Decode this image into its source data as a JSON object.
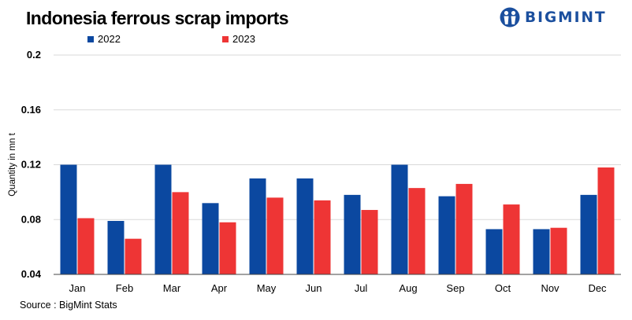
{
  "header": {
    "title": "Indonesia ferrous scrap imports"
  },
  "brand": {
    "name": "BIGMINT",
    "logo_icon": "bigmint-people-icon",
    "color": "#1b4f9e"
  },
  "footer": {
    "source": "Source : BigMint Stats"
  },
  "chart_data": {
    "type": "bar",
    "title": "Indonesia ferrous scrap imports",
    "xlabel": "",
    "ylabel": "Quantity in mn t",
    "ylim": [
      0.04,
      0.2
    ],
    "yticks": [
      0.04,
      0.08,
      0.12,
      0.16,
      0.2
    ],
    "ytick_labels": [
      "0.04",
      "0.08",
      "0.12",
      "0.16",
      "0.2"
    ],
    "grid": true,
    "legend_position": "top-left",
    "categories": [
      "Jan",
      "Feb",
      "Mar",
      "Apr",
      "May",
      "Jun",
      "Jul",
      "Aug",
      "Sep",
      "Oct",
      "Nov",
      "Dec"
    ],
    "series": [
      {
        "name": "2022",
        "color": "#0b48a0",
        "values": [
          0.12,
          0.079,
          0.12,
          0.092,
          0.11,
          0.11,
          0.098,
          0.12,
          0.097,
          0.073,
          0.073,
          0.098
        ]
      },
      {
        "name": "2023",
        "color": "#ee3535",
        "values": [
          0.081,
          0.066,
          0.1,
          0.078,
          0.096,
          0.094,
          0.087,
          0.103,
          0.106,
          0.091,
          0.074,
          0.118
        ]
      }
    ]
  }
}
